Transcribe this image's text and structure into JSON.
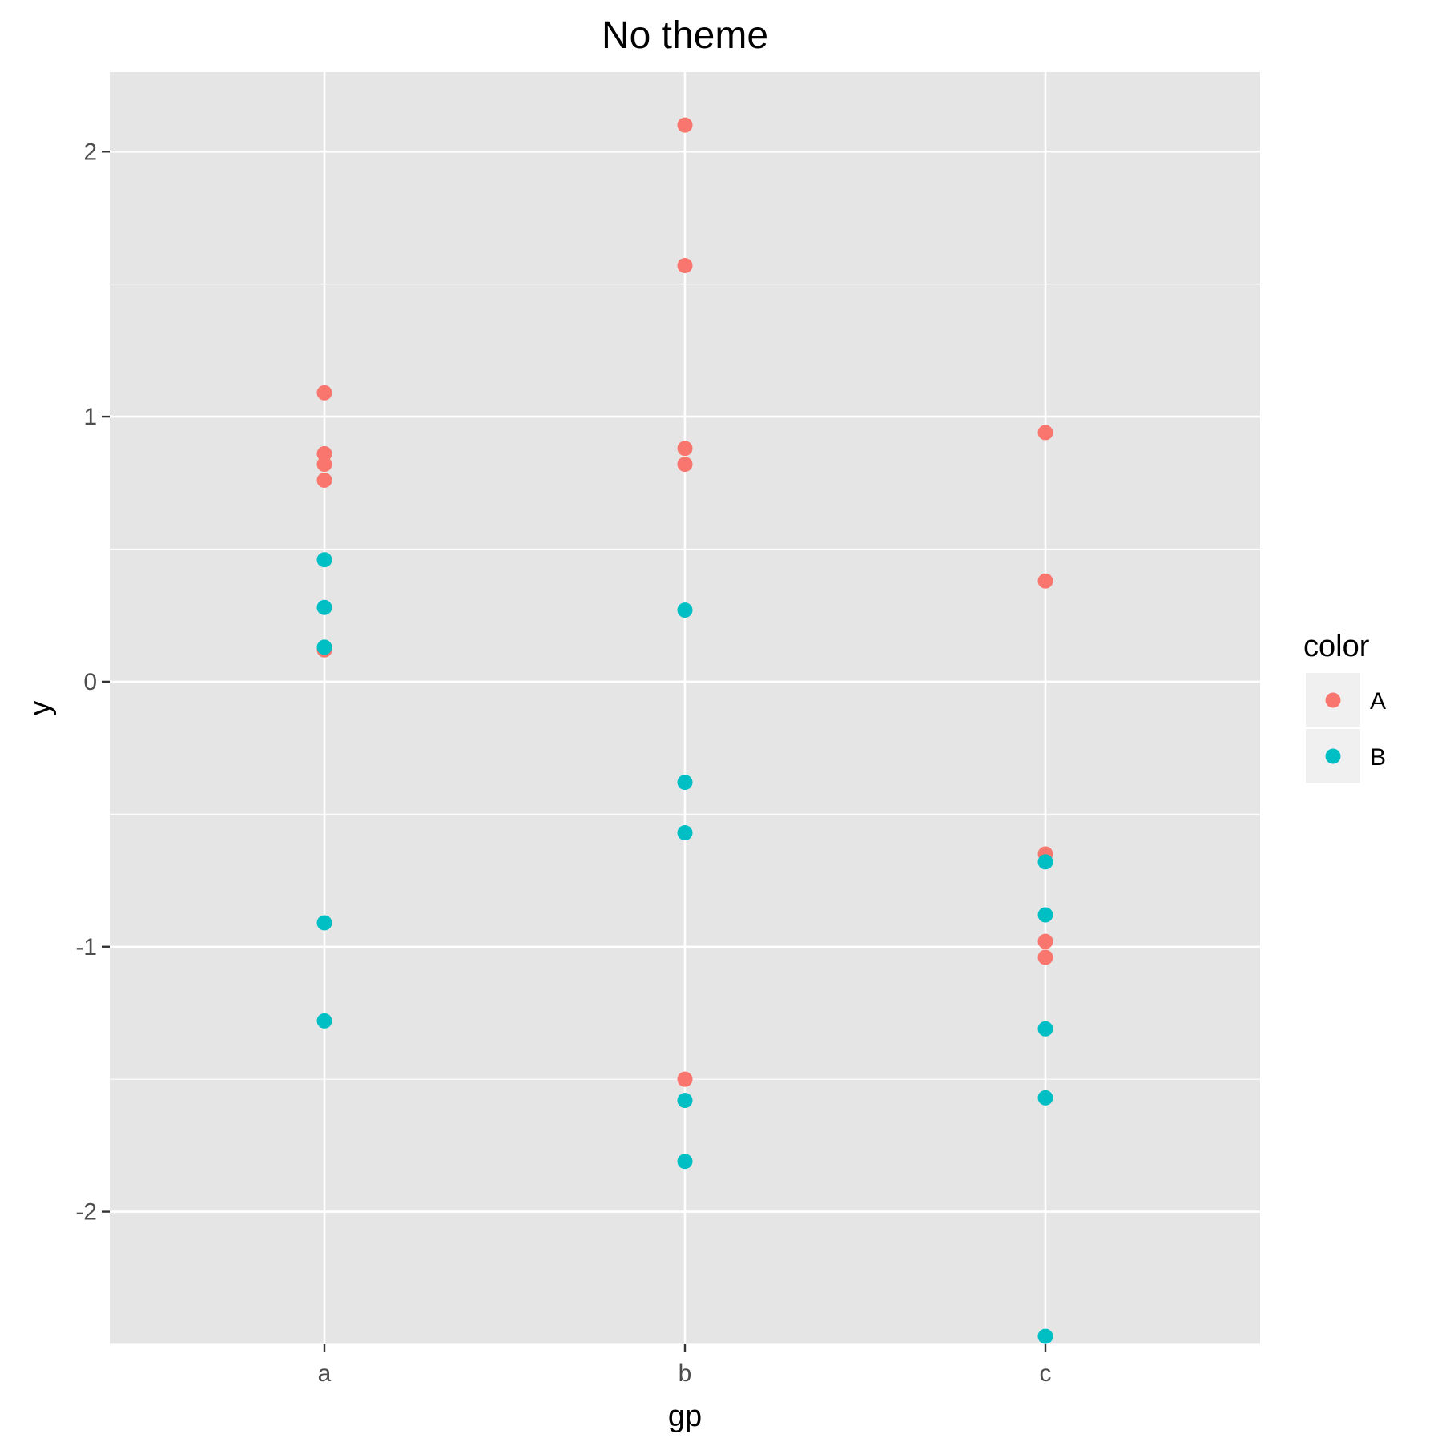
{
  "chart_data": {
    "type": "scatter",
    "title": "No theme",
    "xlabel": "gp",
    "ylabel": "y",
    "categories": [
      "a",
      "b",
      "c"
    ],
    "ylim": [
      -2.5,
      2.3
    ],
    "yticks": [
      -2,
      -1,
      0,
      1,
      2
    ],
    "grid": true,
    "legend": {
      "title": "color",
      "position": "right"
    },
    "series": [
      {
        "name": "A",
        "color": "#F8766D",
        "points": [
          {
            "x": "a",
            "y": 1.09
          },
          {
            "x": "a",
            "y": 0.86
          },
          {
            "x": "a",
            "y": 0.82
          },
          {
            "x": "a",
            "y": 0.76
          },
          {
            "x": "a",
            "y": 0.12
          },
          {
            "x": "b",
            "y": 2.1
          },
          {
            "x": "b",
            "y": 1.57
          },
          {
            "x": "b",
            "y": 0.88
          },
          {
            "x": "b",
            "y": 0.82
          },
          {
            "x": "b",
            "y": -1.5
          },
          {
            "x": "c",
            "y": 0.94
          },
          {
            "x": "c",
            "y": 0.38
          },
          {
            "x": "c",
            "y": -0.65
          },
          {
            "x": "c",
            "y": -0.98
          },
          {
            "x": "c",
            "y": -1.04
          }
        ]
      },
      {
        "name": "B",
        "color": "#00BFC4",
        "points": [
          {
            "x": "a",
            "y": 0.46
          },
          {
            "x": "a",
            "y": 0.28
          },
          {
            "x": "a",
            "y": 0.13
          },
          {
            "x": "a",
            "y": -0.91
          },
          {
            "x": "a",
            "y": -1.28
          },
          {
            "x": "b",
            "y": 0.27
          },
          {
            "x": "b",
            "y": -0.38
          },
          {
            "x": "b",
            "y": -0.57
          },
          {
            "x": "b",
            "y": -1.58
          },
          {
            "x": "b",
            "y": -1.81
          },
          {
            "x": "c",
            "y": -0.68
          },
          {
            "x": "c",
            "y": -0.88
          },
          {
            "x": "c",
            "y": -1.31
          },
          {
            "x": "c",
            "y": -1.57
          },
          {
            "x": "c",
            "y": -2.47
          }
        ]
      }
    ]
  },
  "colors": {
    "panel_bg": "#E5E5E5",
    "grid": "#FFFFFF",
    "legend_key_bg": "#F0F0F0"
  }
}
